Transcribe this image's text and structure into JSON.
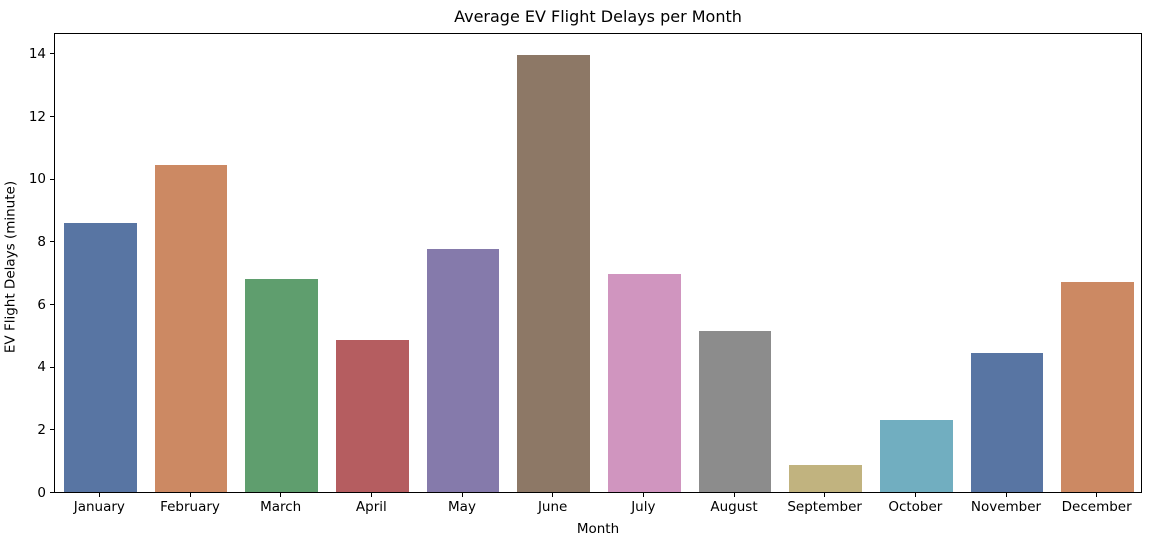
{
  "figure": {
    "background": "#ffffff",
    "axis_color": "#000000",
    "text_color": "#000000"
  },
  "chart_data": {
    "type": "bar",
    "title": "Average EV Flight Delays per Month",
    "xlabel": "Month",
    "ylabel": "EV Flight Delays (minute)",
    "categories": [
      "January",
      "February",
      "March",
      "April",
      "May",
      "June",
      "July",
      "August",
      "September",
      "October",
      "November",
      "December"
    ],
    "values": [
      8.6,
      10.45,
      6.8,
      4.85,
      7.75,
      13.95,
      6.95,
      5.15,
      0.85,
      2.3,
      4.45,
      6.7
    ],
    "bar_colors": [
      "#5875A3",
      "#CC8963",
      "#5F9E6E",
      "#B55D60",
      "#857AAB",
      "#8D7866",
      "#D095BF",
      "#8C8C8C",
      "#C1B37F",
      "#71AEC0",
      "#5875A3",
      "#CC8963"
    ],
    "ylim": [
      0,
      14.65
    ],
    "yticks": [
      0,
      2,
      4,
      6,
      8,
      10,
      12,
      14
    ],
    "grid": false,
    "legend": false,
    "bar_width_fraction": 0.8
  }
}
